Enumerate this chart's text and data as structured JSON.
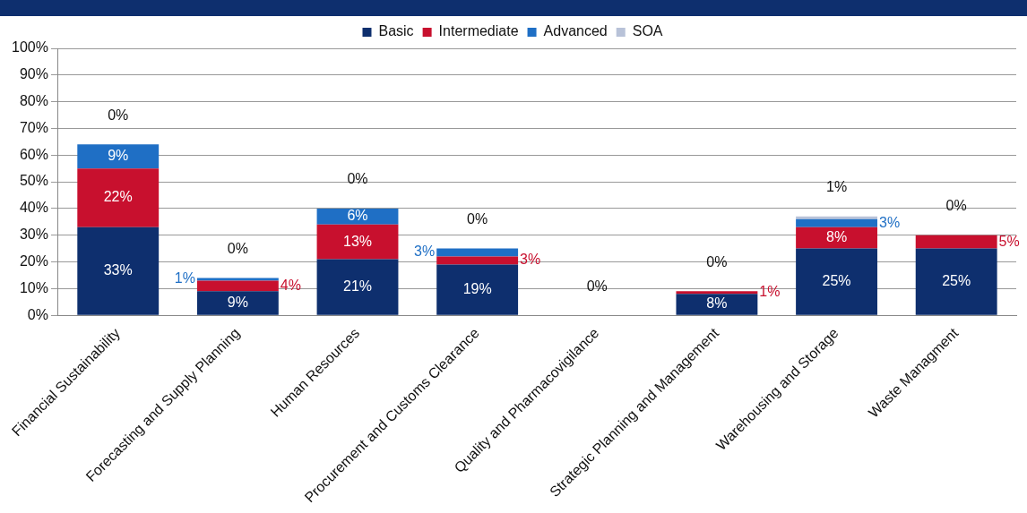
{
  "chart_data": {
    "type": "bar",
    "stacked": true,
    "legend": "top",
    "grid": "y",
    "data_labels": false,
    "categories": [
      "Financial Sustainability",
      "Forecasting and Supply Planning",
      "Human Resources",
      "Procurement and Customs Clearance",
      "Quality and Pharmacovigilance",
      "Strategic Planning and Management",
      "Warehousing and Storage",
      "Waste Managment"
    ],
    "ylim": [
      0,
      100
    ],
    "yticks": [
      {
        "value": 0,
        "label": "0%"
      },
      {
        "value": 10,
        "label": "10%"
      },
      {
        "value": 20,
        "label": "20%"
      },
      {
        "value": 30,
        "label": "30%"
      },
      {
        "value": 40,
        "label": "40%"
      },
      {
        "value": 50,
        "label": "50%"
      },
      {
        "value": 60,
        "label": "60%"
      },
      {
        "value": 70,
        "label": "70%"
      },
      {
        "value": 80,
        "label": "80%"
      },
      {
        "value": 90,
        "label": "90%"
      },
      {
        "value": 100,
        "label": "100%"
      }
    ],
    "series": [
      {
        "name": "Basic",
        "color": "#0e2f6e",
        "values": [
          33,
          9,
          21,
          19,
          0,
          8,
          25,
          25
        ],
        "value_labels": [
          "33%",
          "9%",
          "21%",
          "19%",
          null,
          "8%",
          "25%",
          "25%"
        ]
      },
      {
        "name": "Intermediate",
        "color": "#c8102e",
        "values": [
          22,
          4,
          13,
          3,
          0,
          1,
          8,
          5
        ],
        "value_labels": [
          "22%",
          "4%",
          "13%",
          "3%",
          null,
          "1%",
          "8%",
          "5%"
        ]
      },
      {
        "name": "Advanced",
        "color": "#1f6fc5",
        "values": [
          9,
          1,
          6,
          3,
          0,
          0,
          3,
          0
        ],
        "value_labels": [
          "9%",
          "1%",
          "6%",
          "3%",
          null,
          null,
          "3%",
          null
        ]
      },
      {
        "name": "SOA",
        "color": "#b8c2d8",
        "values": [
          0,
          0,
          0,
          0,
          0,
          0,
          1,
          0
        ],
        "value_labels": [
          "0%",
          "0%",
          "0%",
          "0%",
          "0%",
          "0%",
          "1%",
          "0%"
        ]
      }
    ]
  }
}
